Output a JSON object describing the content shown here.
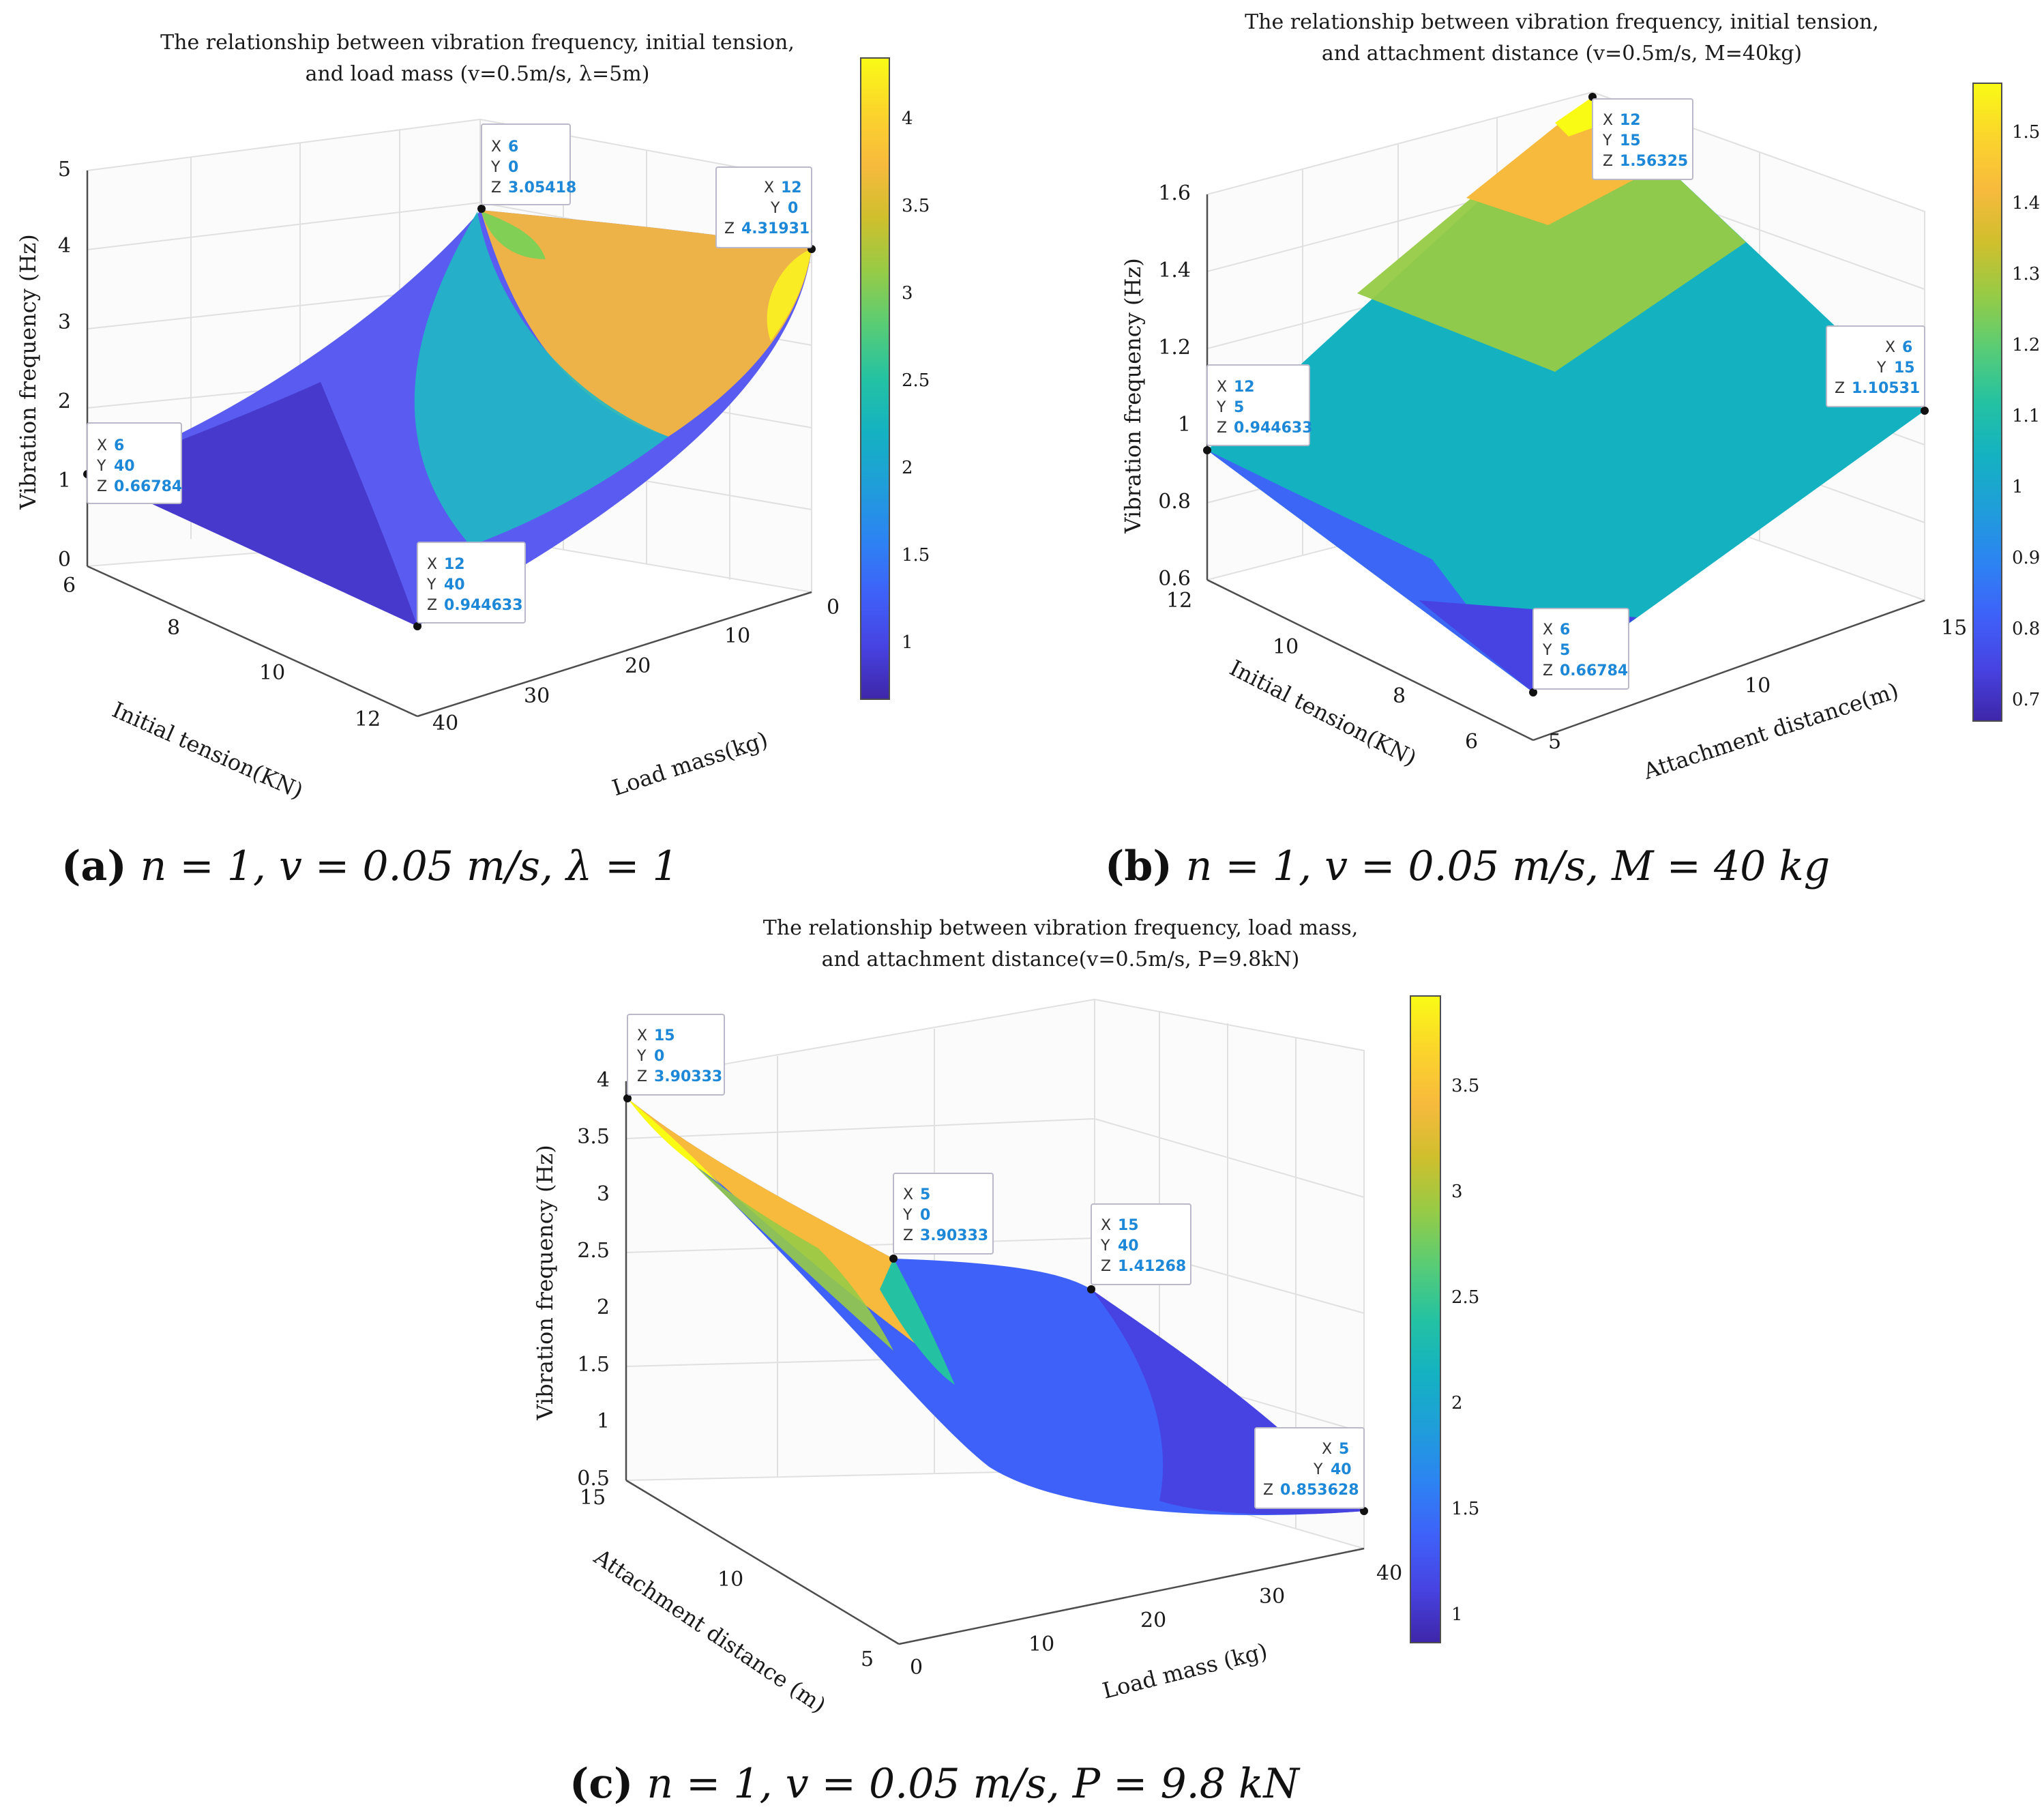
{
  "colors": {
    "parula": [
      "#3e26a8",
      "#4743e2",
      "#3e62f9",
      "#2c84f2",
      "#1f9ed9",
      "#14b2c1",
      "#24c2a2",
      "#58cc76",
      "#96cb46",
      "#cfbf2d",
      "#f7ba3d",
      "#fbd52b",
      "#f9fb15"
    ],
    "axis": "#4d4d4d",
    "grid": "#e0e0e0",
    "tip_value": "#1e88d8"
  },
  "chart_data": [
    {
      "type": "surface3d",
      "title": [
        "The relationship between vibration frequency, initial tension,",
        "and load mass (v=0.5m/s, λ=5m)"
      ],
      "xlabel": "Initial tension(KN)",
      "ylabel": "Load mass(kg)",
      "zlabel": "Vibration frequency (Hz)",
      "xlim": [
        6,
        12
      ],
      "ylim": [
        0,
        40
      ],
      "zlim": [
        0,
        5
      ],
      "xticks": [
        "6",
        "8",
        "10",
        "12"
      ],
      "yticks": [
        "0",
        "10",
        "20",
        "30",
        "40"
      ],
      "zticks": [
        "0",
        "1",
        "2",
        "3",
        "4",
        "5"
      ],
      "colorbar": {
        "range": [
          0.66784,
          4.31931
        ],
        "ticks": [
          "1",
          "1.5",
          "2",
          "2.5",
          "3",
          "3.5",
          "4"
        ]
      },
      "corners": {
        "x6_y0": 3.05418,
        "x12_y0": 4.31931,
        "x6_y40": 0.66784,
        "x12_y40": 0.944633
      },
      "datatips": [
        {
          "X": "6",
          "Y": "0",
          "Z": "3.05418"
        },
        {
          "X": "12",
          "Y": "0",
          "Z": "4.31931"
        },
        {
          "X": "6",
          "Y": "40",
          "Z": "0.66784"
        },
        {
          "X": "12",
          "Y": "40",
          "Z": "0.944633"
        }
      ],
      "caption": {
        "letter": "(a)",
        "text": "n = 1, v = 0.05 m/s, λ = 1"
      }
    },
    {
      "type": "surface3d",
      "title": [
        "The relationship between vibration frequency, initial tension,",
        "and attachment distance (v=0.5m/s, M=40kg)"
      ],
      "xlabel": "Initial tension(KN)",
      "ylabel": "Attachment distance(m)",
      "zlabel": "Vibration frequency (Hz)",
      "xlim": [
        6,
        12
      ],
      "ylim": [
        5,
        15
      ],
      "zlim": [
        0.6,
        1.6
      ],
      "xticks": [
        "6",
        "8",
        "10",
        "12"
      ],
      "yticks": [
        "5",
        "10",
        "15"
      ],
      "zticks": [
        "0.6",
        "0.8",
        "1",
        "1.2",
        "1.4",
        "1.6"
      ],
      "colorbar": {
        "range": [
          0.66784,
          1.56325
        ],
        "ticks": [
          "0.7",
          "0.8",
          "0.9",
          "1",
          "1.1",
          "1.2",
          "1.3",
          "1.4",
          "1.5"
        ]
      },
      "corners": {
        "x12_y15": 1.56325,
        "x12_y5": 0.944633,
        "x6_y15": 1.10531,
        "x6_y5": 0.66784
      },
      "datatips": [
        {
          "X": "12",
          "Y": "15",
          "Z": "1.56325"
        },
        {
          "X": "12",
          "Y": "5",
          "Z": "0.944633"
        },
        {
          "X": "6",
          "Y": "15",
          "Z": "1.10531"
        },
        {
          "X": "6",
          "Y": "5",
          "Z": "0.66784"
        }
      ],
      "caption": {
        "letter": "(b)",
        "text": "n = 1, v = 0.05 m/s, M = 40 kg"
      }
    },
    {
      "type": "surface3d",
      "title": [
        "The relationship between vibration frequency, load mass,",
        "and attachment distance(v=0.5m/s, P=9.8kN)"
      ],
      "xlabel": "Attachment distance (m)",
      "ylabel": "Load mass (kg)",
      "zlabel": "Vibration frequency (Hz)",
      "xlim": [
        5,
        15
      ],
      "ylim": [
        0,
        40
      ],
      "zlim": [
        0.5,
        4
      ],
      "xticks": [
        "5",
        "10",
        "15"
      ],
      "yticks": [
        "0",
        "10",
        "20",
        "30",
        "40"
      ],
      "zticks": [
        "0.5",
        "1",
        "1.5",
        "2",
        "2.5",
        "3",
        "3.5",
        "4"
      ],
      "colorbar": {
        "range": [
          0.853628,
          3.90333
        ],
        "ticks": [
          "1",
          "1.5",
          "2",
          "2.5",
          "3",
          "3.5"
        ]
      },
      "corners": {
        "x15_y0": 3.90333,
        "x5_y0": 3.90333,
        "x15_y40": 1.41268,
        "x5_y40": 0.853628
      },
      "datatips": [
        {
          "X": "15",
          "Y": "0",
          "Z": "3.90333"
        },
        {
          "X": "5",
          "Y": "0",
          "Z": "3.90333"
        },
        {
          "X": "15",
          "Y": "40",
          "Z": "1.41268"
        },
        {
          "X": "5",
          "Y": "40",
          "Z": "0.853628"
        }
      ],
      "caption": {
        "letter": "(c)",
        "text": "n = 1, v = 0.05 m/s, P = 9.8 kN"
      }
    }
  ]
}
